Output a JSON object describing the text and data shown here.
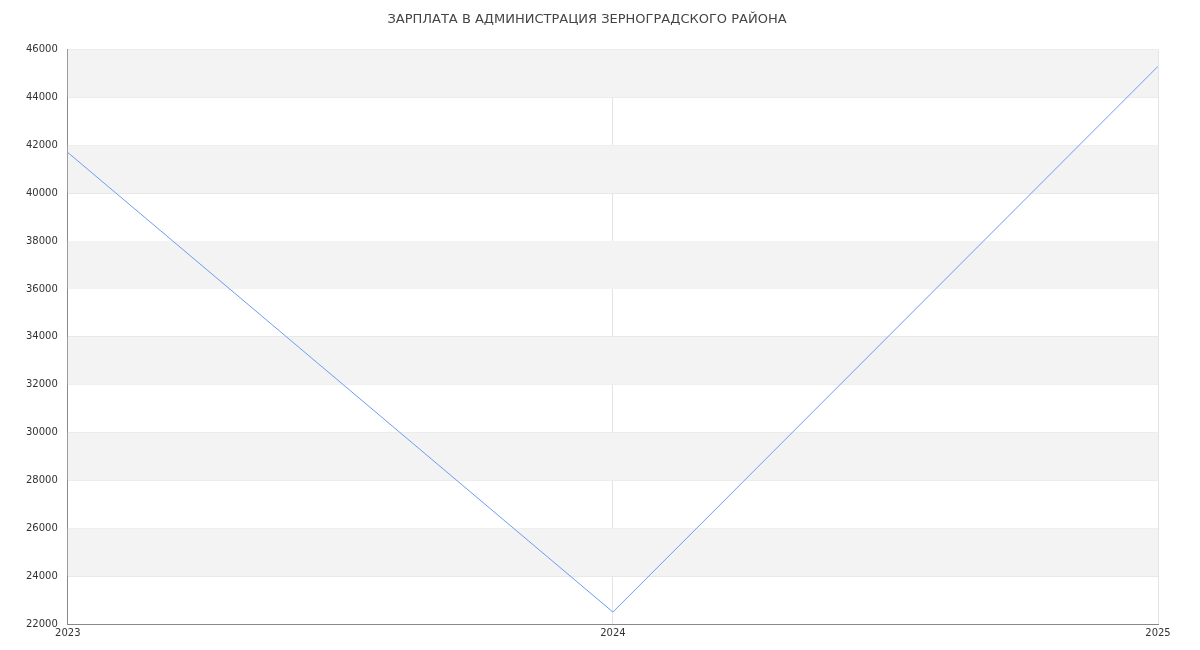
{
  "chart_data": {
    "type": "line",
    "title": "ЗАРПЛАТА В АДМИНИСТРАЦИЯ ЗЕРНОГРАДСКОГО РАЙОНА",
    "x": [
      2023,
      2024,
      2025
    ],
    "series": [
      {
        "color": "#6d9cf0",
        "values": [
          41700,
          22500,
          45300
        ]
      }
    ],
    "xlim": [
      2023,
      2025
    ],
    "xticks": [
      2023,
      2024,
      2025
    ],
    "ylim": [
      22000,
      46000
    ],
    "yticks": [
      22000,
      24000,
      26000,
      28000,
      30000,
      32000,
      34000,
      36000,
      38000,
      40000,
      42000,
      44000,
      46000
    ],
    "grid": true,
    "legend": false,
    "marker": "none",
    "line_style": "solid"
  }
}
